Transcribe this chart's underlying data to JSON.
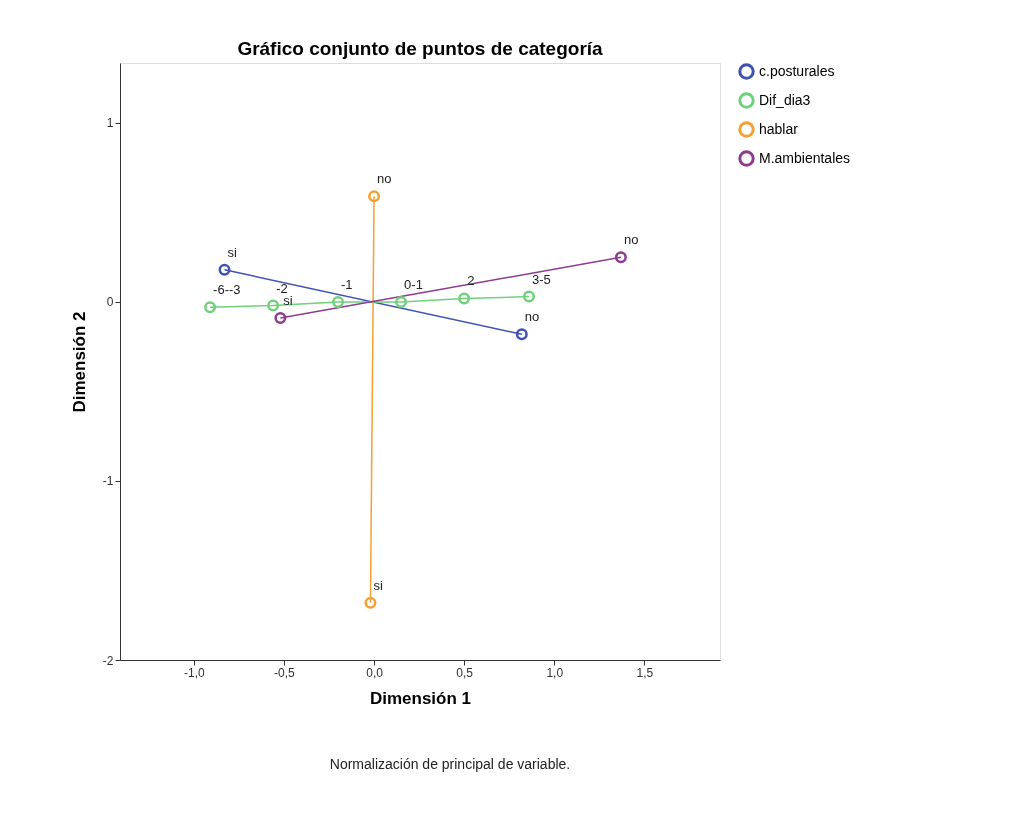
{
  "chart_data": {
    "type": "line",
    "title": "Gráfico conjunto de puntos de categoría",
    "xlabel": "Dimensión 1",
    "ylabel": "Dimensión 2",
    "annotations": [
      "Normalización de principal de variable.",
      {
        "text": "si",
        "x": -0.83,
        "y": 0.18
      },
      {
        "text": "no",
        "x": 0.82,
        "y": -0.18
      },
      {
        "text": "-6--3",
        "x": -0.91,
        "y": -0.03
      },
      {
        "text": "-2",
        "x": -0.56,
        "y": -0.02
      },
      {
        "text": "-1",
        "x": -0.2,
        "y": 0.0
      },
      {
        "text": "0-1",
        "x": 0.15,
        "y": 0.0
      },
      {
        "text": "2",
        "x": 0.5,
        "y": 0.02
      },
      {
        "text": "3-5",
        "x": 0.86,
        "y": 0.03
      },
      {
        "text": "no",
        "x": 0.0,
        "y": 0.59
      },
      {
        "text": "si",
        "x": -0.02,
        "y": -1.68
      },
      {
        "text": "no",
        "x": 1.37,
        "y": 0.25
      },
      {
        "text": "si",
        "x": -0.52,
        "y": -0.09
      }
    ],
    "series": [
      {
        "name": "c.posturales",
        "color": "#3f51b5",
        "x": [
          -0.83,
          0.82
        ],
        "values": [
          0.18,
          -0.18
        ]
      },
      {
        "name": "Dif_dia3",
        "color": "#6fd17a",
        "x": [
          -0.91,
          -0.56,
          -0.2,
          0.15,
          0.5,
          0.86
        ],
        "values": [
          -0.03,
          -0.02,
          0.0,
          0.0,
          0.02,
          0.03
        ]
      },
      {
        "name": "hablar",
        "color": "#f5a031",
        "x": [
          0.0,
          -0.02
        ],
        "values": [
          0.59,
          -1.68
        ]
      },
      {
        "name": "M.ambientales",
        "color": "#8e3a91",
        "x": [
          1.37,
          -0.52
        ],
        "values": [
          0.25,
          -0.09
        ]
      }
    ],
    "xlim": [
      -1.41,
      1.92
    ],
    "ylim": [
      -2,
      1.335
    ],
    "xticks": [
      {
        "value": -1.0,
        "label": "-1,0"
      },
      {
        "value": -0.5,
        "label": "-0,5"
      },
      {
        "value": 0.0,
        "label": "0,0"
      },
      {
        "value": 0.5,
        "label": "0,5"
      },
      {
        "value": 1.0,
        "label": "1,0"
      },
      {
        "value": 1.5,
        "label": "1,5"
      }
    ],
    "yticks": [
      -2,
      -1,
      0,
      1
    ],
    "marker": "circle",
    "line_style": "solid",
    "grid": false,
    "legend": "top right"
  }
}
